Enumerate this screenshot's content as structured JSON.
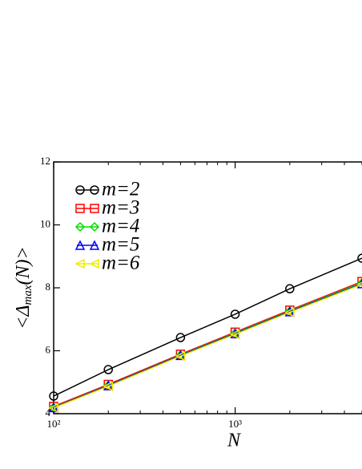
{
  "chart_data": {
    "type": "line",
    "x_label": "N",
    "y_label": {
      "open": "<Δ",
      "sub": "max",
      "close": "(N)>"
    },
    "x": [
      100,
      200,
      500,
      1000,
      2000,
      5000
    ],
    "x_log": true,
    "xlim": [
      100,
      5000
    ],
    "xticks": [
      {
        "value": 100,
        "label": "10²"
      },
      {
        "value": 1000,
        "label": "10³"
      }
    ],
    "x_minor_ticks": [
      200,
      300,
      400,
      500,
      600,
      700,
      800,
      900,
      2000,
      3000,
      4000,
      5000
    ],
    "ylim": [
      4,
      12
    ],
    "yticks": [
      4,
      6,
      8,
      10,
      12
    ],
    "legend": "top-left",
    "series": [
      {
        "name": "m=2",
        "color": "#000000",
        "marker": "circle",
        "values": [
          4.56,
          5.4,
          6.42,
          7.16,
          7.97,
          8.94
        ]
      },
      {
        "name": "m=3",
        "color": "#ff0000",
        "marker": "square",
        "values": [
          4.23,
          4.93,
          5.89,
          6.59,
          7.29,
          8.2
        ]
      },
      {
        "name": "m=4",
        "color": "#00dd00",
        "marker": "diamond",
        "values": [
          4.2,
          4.9,
          5.86,
          6.56,
          7.26,
          8.16
        ]
      },
      {
        "name": "m=5",
        "color": "#0000ff",
        "marker": "triangle-up",
        "values": [
          4.19,
          4.89,
          5.85,
          6.54,
          7.24,
          8.13
        ]
      },
      {
        "name": "m=6",
        "color": "#eeee00",
        "marker": "triangle-left",
        "values": [
          4.18,
          4.87,
          5.83,
          6.52,
          7.22,
          8.11
        ]
      }
    ]
  }
}
